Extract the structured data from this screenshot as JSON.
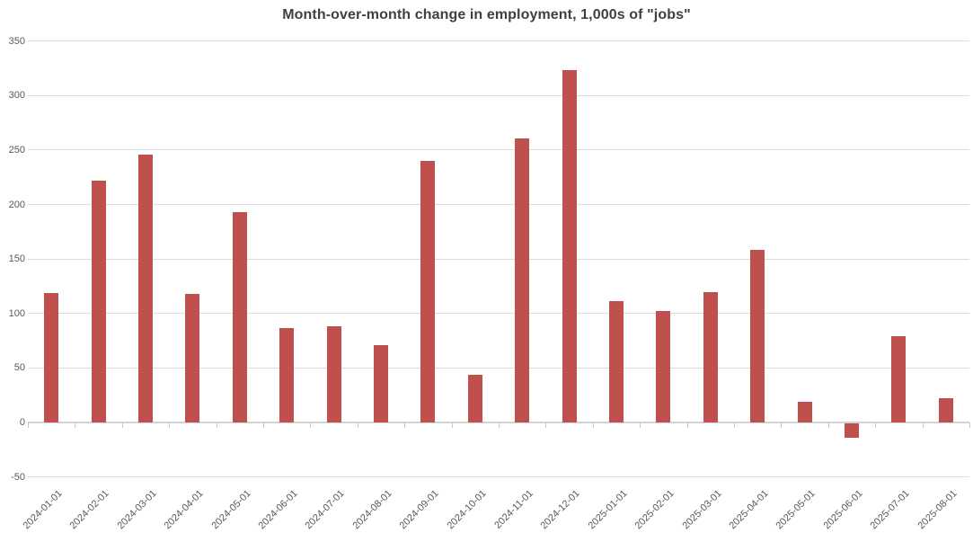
{
  "chart_data": {
    "type": "bar",
    "title": "Month-over-month change in employment, 1,000s of \"jobs\"",
    "categories": [
      "2024-01-01",
      "2024-02-01",
      "2024-03-01",
      "2024-04-01",
      "2024-05-01",
      "2024-06-01",
      "2024-07-01",
      "2024-08-01",
      "2024-09-01",
      "2024-10-01",
      "2024-11-01",
      "2024-12-01",
      "2025-01-01",
      "2025-02-01",
      "2025-03-01",
      "2025-04-01",
      "2025-05-01",
      "2025-06-01",
      "2025-07-01",
      "2025-08-01"
    ],
    "values": [
      119,
      222,
      246,
      118,
      193,
      87,
      88,
      71,
      240,
      44,
      261,
      323,
      111,
      102,
      120,
      158,
      19,
      -13,
      79,
      22
    ],
    "xlabel": "",
    "ylabel": "",
    "ylim": [
      -50,
      350
    ],
    "yticks": [
      350,
      300,
      250,
      200,
      150,
      100,
      50,
      0,
      -50
    ],
    "grid": true,
    "legend": false,
    "colors": {
      "bar": "#c0504d",
      "title": "#404040",
      "tick_label": "#595959",
      "gridline": "#dcdcdc",
      "axis_line": "#d3d3d3",
      "tick_mark": "#c9c9c9",
      "background": "#ffffff"
    }
  }
}
